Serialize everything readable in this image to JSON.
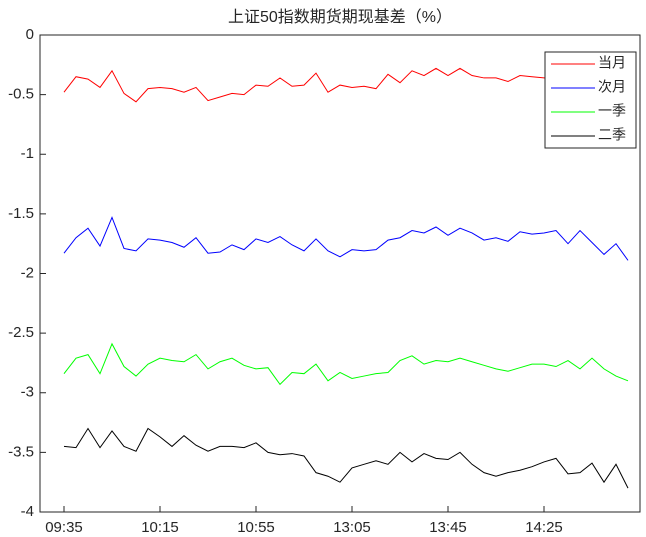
{
  "chart_data": {
    "type": "line",
    "title": "上证50指数期货期现基差（%）",
    "categories": [
      "09:35",
      null,
      null,
      null,
      null,
      null,
      null,
      null,
      "10:15",
      null,
      null,
      null,
      null,
      null,
      null,
      null,
      "10:55",
      null,
      null,
      null,
      null,
      null,
      null,
      null,
      "13:05",
      null,
      null,
      null,
      null,
      null,
      null,
      null,
      "13:45",
      null,
      null,
      null,
      null,
      null,
      null,
      null,
      "14:25",
      null,
      null,
      null,
      null,
      null,
      null,
      null
    ],
    "ylim": [
      -4,
      0
    ],
    "yticks": [
      -4,
      -3.5,
      -3,
      -2.5,
      -2,
      -1.5,
      -1,
      -0.5,
      0
    ],
    "legend": "upper right",
    "grid": false,
    "series": [
      {
        "name": "当月",
        "color": "#ff0000",
        "values": [
          -0.48,
          -0.35,
          -0.37,
          -0.44,
          -0.3,
          -0.49,
          -0.56,
          -0.45,
          -0.44,
          -0.45,
          -0.48,
          -0.44,
          -0.55,
          -0.52,
          -0.49,
          -0.5,
          -0.42,
          -0.43,
          -0.36,
          -0.43,
          -0.42,
          -0.32,
          -0.48,
          -0.42,
          -0.44,
          -0.43,
          -0.45,
          -0.33,
          -0.4,
          -0.3,
          -0.34,
          -0.28,
          -0.34,
          -0.28,
          -0.34,
          -0.36,
          -0.36,
          -0.39,
          -0.34,
          -0.35,
          -0.36,
          -0.37,
          -0.36,
          -0.38,
          -0.35,
          -0.37,
          -0.36,
          -0.38
        ]
      },
      {
        "name": "次月",
        "color": "#0000ff",
        "values": [
          -1.83,
          -1.7,
          -1.62,
          -1.77,
          -1.53,
          -1.79,
          -1.81,
          -1.71,
          -1.72,
          -1.74,
          -1.78,
          -1.7,
          -1.83,
          -1.82,
          -1.76,
          -1.8,
          -1.71,
          -1.74,
          -1.69,
          -1.76,
          -1.81,
          -1.71,
          -1.81,
          -1.86,
          -1.8,
          -1.81,
          -1.8,
          -1.72,
          -1.7,
          -1.64,
          -1.66,
          -1.61,
          -1.68,
          -1.62,
          -1.66,
          -1.72,
          -1.7,
          -1.73,
          -1.65,
          -1.67,
          -1.66,
          -1.64,
          -1.75,
          -1.64,
          -1.74,
          -1.84,
          -1.75,
          -1.89
        ]
      },
      {
        "name": "一季",
        "color": "#00ff00",
        "values": [
          -2.84,
          -2.71,
          -2.68,
          -2.84,
          -2.59,
          -2.78,
          -2.86,
          -2.76,
          -2.71,
          -2.73,
          -2.74,
          -2.68,
          -2.8,
          -2.74,
          -2.71,
          -2.77,
          -2.8,
          -2.79,
          -2.93,
          -2.83,
          -2.84,
          -2.76,
          -2.9,
          -2.83,
          -2.88,
          -2.86,
          -2.84,
          -2.83,
          -2.73,
          -2.69,
          -2.76,
          -2.73,
          -2.74,
          -2.71,
          -2.74,
          -2.77,
          -2.8,
          -2.82,
          -2.79,
          -2.76,
          -2.76,
          -2.78,
          -2.73,
          -2.8,
          -2.71,
          -2.8,
          -2.86,
          -2.9
        ]
      },
      {
        "name": "二季",
        "color": "#000000",
        "values": [
          -3.45,
          -3.46,
          -3.3,
          -3.46,
          -3.32,
          -3.45,
          -3.49,
          -3.3,
          -3.37,
          -3.45,
          -3.36,
          -3.44,
          -3.49,
          -3.45,
          -3.45,
          -3.46,
          -3.42,
          -3.5,
          -3.52,
          -3.51,
          -3.53,
          -3.67,
          -3.7,
          -3.75,
          -3.63,
          -3.6,
          -3.57,
          -3.6,
          -3.5,
          -3.58,
          -3.51,
          -3.55,
          -3.56,
          -3.5,
          -3.6,
          -3.67,
          -3.7,
          -3.67,
          -3.65,
          -3.62,
          -3.58,
          -3.55,
          -3.68,
          -3.67,
          -3.59,
          -3.75,
          -3.6,
          -3.8
        ]
      }
    ]
  }
}
